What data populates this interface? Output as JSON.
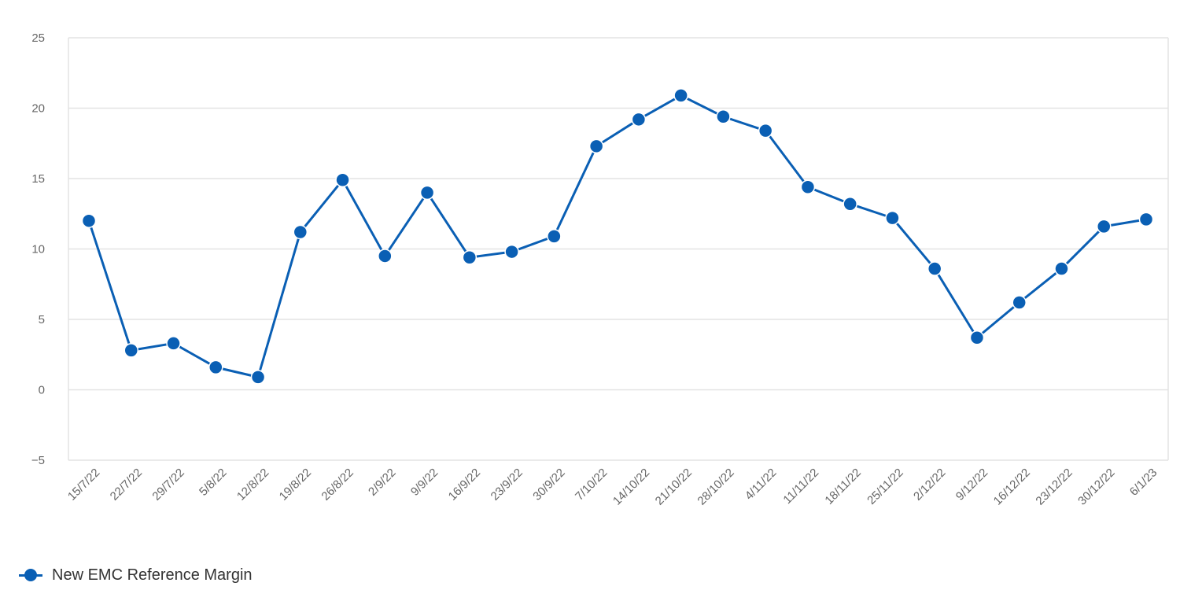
{
  "chart_data": {
    "type": "line",
    "title": "",
    "xlabel": "",
    "ylabel": "",
    "categories": [
      "15/7/22",
      "22/7/22",
      "29/7/22",
      "5/8/22",
      "12/8/22",
      "19/8/22",
      "26/8/22",
      "2/9/22",
      "9/9/22",
      "16/9/22",
      "23/9/22",
      "30/9/22",
      "7/10/22",
      "14/10/22",
      "21/10/22",
      "28/10/22",
      "4/11/22",
      "11/11/22",
      "18/11/22",
      "25/11/22",
      "2/12/22",
      "9/12/22",
      "16/12/22",
      "23/12/22",
      "30/12/22",
      "6/1/23"
    ],
    "series": [
      {
        "name": "New EMC Reference Margin",
        "color": "#0a5fb4",
        "values": [
          12.0,
          2.8,
          3.3,
          1.6,
          0.9,
          11.2,
          14.9,
          9.5,
          14.0,
          9.4,
          9.8,
          10.9,
          17.3,
          19.2,
          20.9,
          19.4,
          18.4,
          14.4,
          13.2,
          12.2,
          8.6,
          3.7,
          6.2,
          8.6,
          11.6,
          12.1
        ]
      }
    ],
    "ylim": [
      -5,
      25
    ],
    "yticks": [
      "25",
      "20",
      "15",
      "10",
      "5",
      "0",
      "−5"
    ],
    "grid": true,
    "legend_position": "bottom-left"
  }
}
